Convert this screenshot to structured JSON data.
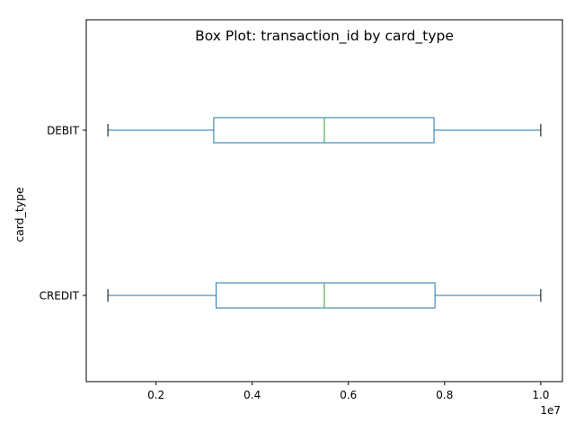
{
  "chart_data": {
    "type": "box",
    "orientation": "horizontal",
    "title": "Box Plot: transaction_id by card_type",
    "xlabel": "",
    "ylabel": "card_type",
    "x_offset_text": "1e7",
    "xlim": [
      550000,
      10450000
    ],
    "xticks": [
      {
        "value": 2000000,
        "label": "0.2"
      },
      {
        "value": 4000000,
        "label": "0.4"
      },
      {
        "value": 6000000,
        "label": "0.6"
      },
      {
        "value": 8000000,
        "label": "0.8"
      },
      {
        "value": 10000000,
        "label": "1.0"
      }
    ],
    "categories": [
      "CREDIT",
      "DEBIT"
    ],
    "boxes": [
      {
        "category": "CREDIT",
        "min": 1000000,
        "q1": 3250000,
        "median": 5500000,
        "q3": 7800000,
        "max": 10000000
      },
      {
        "category": "DEBIT",
        "min": 1000000,
        "q1": 3200000,
        "median": 5500000,
        "q3": 7780000,
        "max": 10000000
      }
    ],
    "grid": false,
    "colors": {
      "box": "#1f77b4",
      "median": "#2ca02c",
      "whisker_cap": "#000000"
    }
  }
}
